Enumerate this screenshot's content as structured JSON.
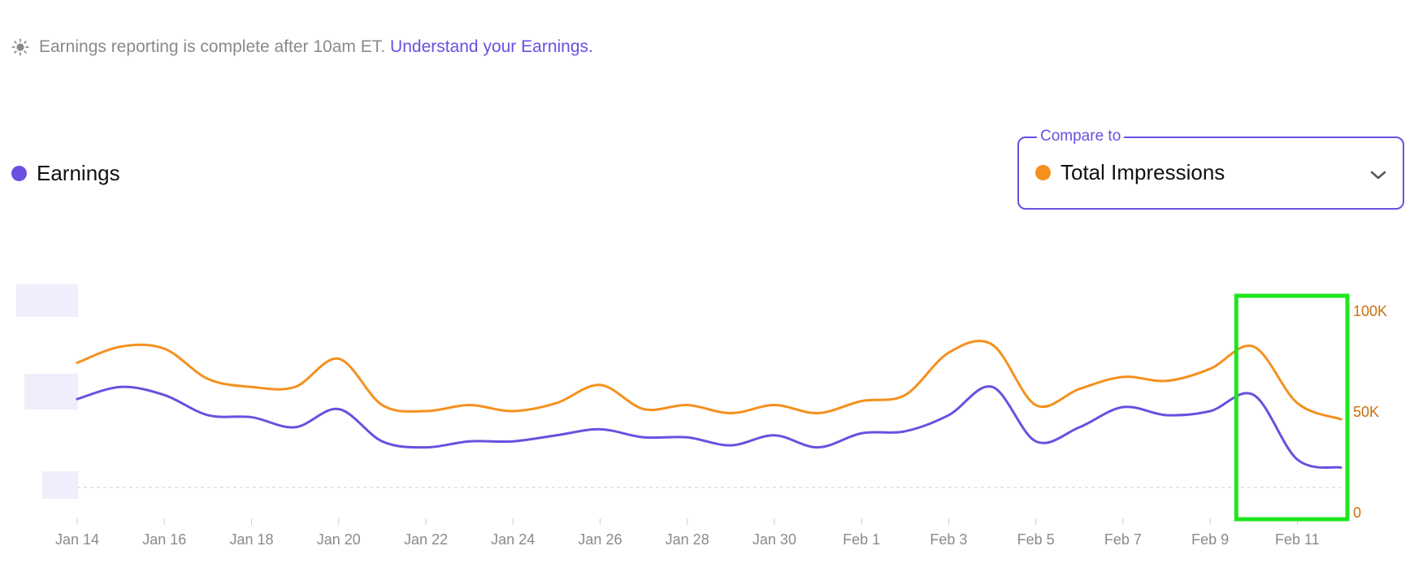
{
  "notice": {
    "icon": "sun-icon",
    "text": "Earnings reporting is complete after 10am ET.",
    "link": "Understand your Earnings."
  },
  "legend": {
    "primary_label": "Earnings",
    "primary_color": "#6a4fe0"
  },
  "compare": {
    "label": "Compare to",
    "value": "Total Impressions",
    "color": "#f5901e",
    "icon": "chevron-down-icon"
  },
  "highlight_color": "#1ee61e",
  "chart_data": {
    "type": "line",
    "x": [
      "Jan 14",
      "Jan 15",
      "Jan 16",
      "Jan 17",
      "Jan 18",
      "Jan 19",
      "Jan 20",
      "Jan 21",
      "Jan 22",
      "Jan 23",
      "Jan 24",
      "Jan 25",
      "Jan 26",
      "Jan 27",
      "Jan 28",
      "Jan 29",
      "Jan 30",
      "Jan 31",
      "Feb 1",
      "Feb 2",
      "Feb 3",
      "Feb 4",
      "Feb 5",
      "Feb 6",
      "Feb 7",
      "Feb 8",
      "Feb 9",
      "Feb 10",
      "Feb 11",
      "Feb 12"
    ],
    "x_tick_labels": [
      "Jan 14",
      "Jan 16",
      "Jan 18",
      "Jan 20",
      "Jan 22",
      "Jan 24",
      "Jan 26",
      "Jan 28",
      "Jan 30",
      "Feb 1",
      "Feb 3",
      "Feb 5",
      "Feb 7",
      "Feb 9",
      "Feb 11"
    ],
    "series": [
      {
        "name": "Total Impressions",
        "axis": "right",
        "color": "#f5901e",
        "values": [
          74,
          82,
          81,
          66,
          62,
          62,
          76,
          53,
          50,
          53,
          50,
          54,
          63,
          51,
          53,
          49,
          53,
          49,
          55,
          58,
          79,
          83,
          53,
          61,
          67,
          65,
          71,
          82,
          54,
          46
        ]
      },
      {
        "name": "Earnings",
        "axis": "left",
        "color": "#6a4fe0",
        "values": [
          56,
          62,
          58,
          48,
          47,
          42,
          51,
          35,
          32,
          35,
          35,
          38,
          41,
          37,
          37,
          33,
          38,
          32,
          39,
          40,
          48,
          62,
          35,
          42,
          52,
          48,
          50,
          58,
          26,
          22
        ]
      }
    ],
    "y_right": {
      "ticks": [
        0,
        50,
        100
      ],
      "tick_labels": [
        "0",
        "50K",
        "100K"
      ],
      "range": [
        0,
        100
      ]
    },
    "y_left": {
      "range": [
        0,
        100
      ]
    },
    "highlight_range": [
      "Feb 10",
      "Feb 12"
    ]
  }
}
